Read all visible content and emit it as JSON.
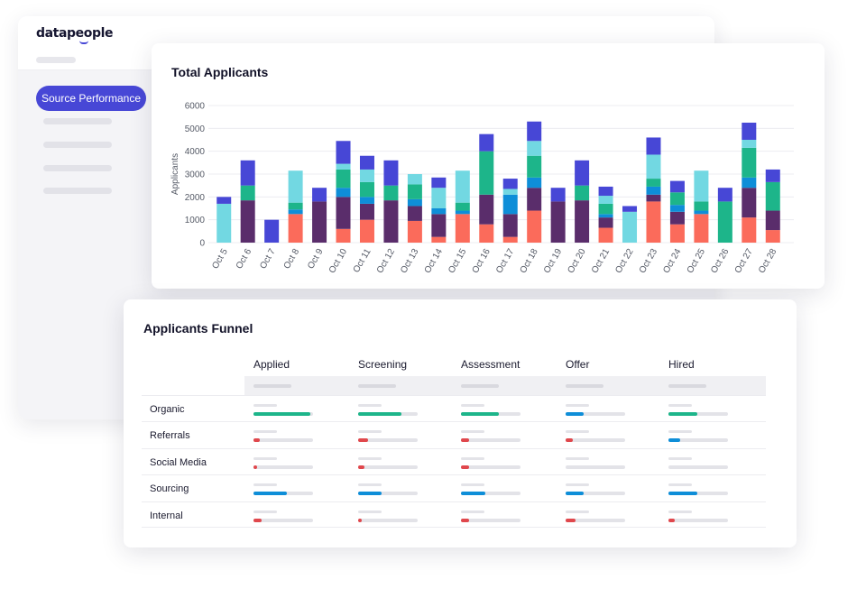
{
  "app": {
    "logo": "datapeople",
    "nav_active": "Source Performance"
  },
  "colors": {
    "purple": "#4747d6",
    "dark_purple": "#5a2d6b",
    "teal": "#1db58a",
    "light_teal": "#72d8e2",
    "blue": "#0e8ed8",
    "coral": "#fb6b5b"
  },
  "chart_data": {
    "type": "bar",
    "stacked": true,
    "title": "Total Applicants",
    "xlabel": "",
    "ylabel": "Applicants",
    "ylim": [
      0,
      6000
    ],
    "yticks": [
      0,
      1000,
      2000,
      3000,
      4000,
      5000,
      6000
    ],
    "grid": true,
    "categories": [
      "Oct 5",
      "Oct 6",
      "Oct 7",
      "Oct 8",
      "Oct 9",
      "Oct 10",
      "Oct 11",
      "Oct 12",
      "Oct 13",
      "Oct 14",
      "Oct 15",
      "Oct 16",
      "Oct 17",
      "Oct 18",
      "Oct 19",
      "Oct 20",
      "Oct 21",
      "Oct 22",
      "Oct 23",
      "Oct 24",
      "Oct 25",
      "Oct 26",
      "Oct 27",
      "Oct 28"
    ],
    "series": [
      {
        "name": "Coral",
        "color": "#fb6b5b",
        "values": [
          0,
          0,
          0,
          1250,
          0,
          600,
          1000,
          0,
          950,
          250,
          1250,
          800,
          250,
          1400,
          0,
          0,
          650,
          0,
          1800,
          800,
          1250,
          0,
          1100,
          550
        ]
      },
      {
        "name": "Dark Purple",
        "color": "#5a2d6b",
        "values": [
          0,
          1850,
          0,
          0,
          1800,
          1400,
          700,
          1850,
          650,
          1000,
          0,
          1300,
          1000,
          1000,
          1800,
          1850,
          450,
          0,
          300,
          550,
          0,
          0,
          1300,
          850
        ]
      },
      {
        "name": "Blue",
        "color": "#0e8ed8",
        "values": [
          0,
          0,
          0,
          200,
          0,
          400,
          300,
          0,
          300,
          250,
          150,
          0,
          850,
          450,
          0,
          0,
          150,
          0,
          350,
          300,
          150,
          0,
          450,
          0
        ]
      },
      {
        "name": "Teal",
        "color": "#1db58a",
        "values": [
          0,
          650,
          0,
          300,
          0,
          800,
          650,
          650,
          650,
          0,
          350,
          1900,
          0,
          950,
          0,
          650,
          450,
          0,
          350,
          550,
          400,
          1800,
          1300,
          1250
        ]
      },
      {
        "name": "Light Teal",
        "color": "#72d8e2",
        "values": [
          1700,
          0,
          0,
          1400,
          0,
          250,
          550,
          0,
          450,
          900,
          1400,
          0,
          250,
          650,
          0,
          0,
          350,
          1350,
          1050,
          0,
          1350,
          0,
          350,
          0
        ]
      },
      {
        "name": "Purple",
        "color": "#4747d6",
        "values": [
          300,
          1100,
          1000,
          0,
          600,
          1000,
          600,
          1100,
          0,
          450,
          0,
          750,
          450,
          850,
          600,
          1100,
          400,
          250,
          750,
          500,
          0,
          600,
          750,
          550
        ]
      }
    ]
  },
  "funnel": {
    "title": "Applicants Funnel",
    "columns": [
      "Applied",
      "Screening",
      "Assessment",
      "Offer",
      "Hired"
    ],
    "rows": [
      {
        "label": "Organic",
        "values": [
          0.95,
          0.72,
          0.63,
          0.3,
          0.48
        ],
        "colors": [
          "#1db58a",
          "#1db58a",
          "#1db58a",
          "#0e8ed8",
          "#1db58a"
        ]
      },
      {
        "label": "Referrals",
        "values": [
          0.1,
          0.16,
          0.14,
          0.12,
          0.2
        ],
        "colors": [
          "#e0474c",
          "#e0474c",
          "#e0474c",
          "#e0474c",
          "#0e8ed8"
        ]
      },
      {
        "label": "Social Media",
        "values": [
          0.06,
          0.1,
          0.14,
          0.0,
          0.0
        ],
        "colors": [
          "#e0474c",
          "#e0474c",
          "#e0474c",
          "#e0474c",
          "#e0474c"
        ]
      },
      {
        "label": "Sourcing",
        "values": [
          0.56,
          0.4,
          0.41,
          0.3,
          0.48
        ],
        "colors": [
          "#0e8ed8",
          "#0e8ed8",
          "#0e8ed8",
          "#0e8ed8",
          "#0e8ed8"
        ]
      },
      {
        "label": "Internal",
        "values": [
          0.13,
          0.06,
          0.14,
          0.16,
          0.1
        ],
        "colors": [
          "#e0474c",
          "#e0474c",
          "#e0474c",
          "#e0474c",
          "#e0474c"
        ]
      }
    ]
  }
}
